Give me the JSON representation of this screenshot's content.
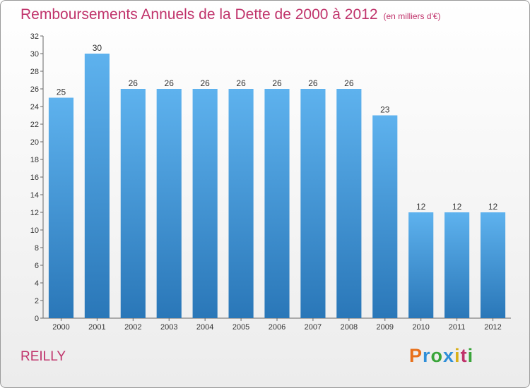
{
  "chart_data": {
    "type": "bar",
    "title": "Remboursements Annuels de la Dette de 2000 à 2012",
    "subtitle": "(en milliers d'€)",
    "categories": [
      "2000",
      "2001",
      "2002",
      "2003",
      "2004",
      "2005",
      "2006",
      "2007",
      "2008",
      "2009",
      "2010",
      "2011",
      "2012"
    ],
    "values": [
      25,
      30,
      26,
      26,
      26,
      26,
      26,
      26,
      26,
      23,
      12,
      12,
      12
    ],
    "ylim": [
      0,
      32
    ],
    "yticks": [
      0,
      2,
      4,
      6,
      8,
      10,
      12,
      14,
      16,
      18,
      20,
      22,
      24,
      26,
      28,
      30,
      32
    ],
    "xlabel": "",
    "ylabel": "",
    "grid": false,
    "bar_color": "#4aa3e6"
  },
  "footer": {
    "commune": "REILLY",
    "logo": "Proxiti",
    "logo_colors": [
      "#e8701a",
      "#2f8fd8",
      "#3aa53a",
      "#2f8fd8",
      "#d8b01a",
      "#c0336b",
      "#3aa53a"
    ]
  }
}
